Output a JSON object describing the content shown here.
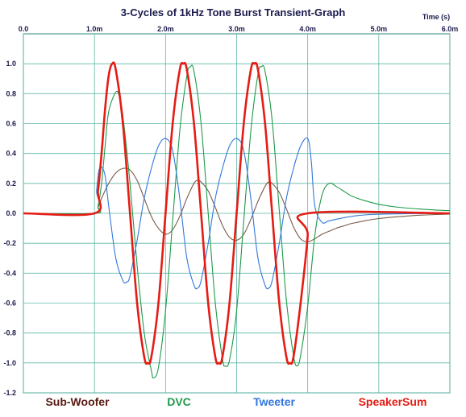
{
  "chart_data": {
    "type": "line",
    "title": "3-Cycles of 1kHz Tone Burst Transient-Graph",
    "x_unit_label": "Time  (s)",
    "xlim": [
      0,
      0.006
    ],
    "ylim": [
      -1.2,
      1.2
    ],
    "x_ticks": [
      {
        "value": 0.0,
        "label": "0.0"
      },
      {
        "value": 0.001,
        "label": "1.0m"
      },
      {
        "value": 0.002,
        "label": "2.0m"
      },
      {
        "value": 0.003,
        "label": "3.0m"
      },
      {
        "value": 0.004,
        "label": "4.0m"
      },
      {
        "value": 0.005,
        "label": "5.0m"
      },
      {
        "value": 0.006,
        "label": "6.0m"
      }
    ],
    "y_ticks": [
      {
        "value": 1.0,
        "label": "1.0"
      },
      {
        "value": 0.8,
        "label": "0.8"
      },
      {
        "value": 0.6,
        "label": "0.6"
      },
      {
        "value": 0.4,
        "label": "0.4"
      },
      {
        "value": 0.2,
        "label": "0.2"
      },
      {
        "value": 0.0,
        "label": "0.0"
      },
      {
        "value": -0.2,
        "label": "-0.2"
      },
      {
        "value": -0.4,
        "label": "-0.4"
      },
      {
        "value": -0.6,
        "label": "-0.6"
      },
      {
        "value": -0.8,
        "label": "-0.8"
      },
      {
        "value": -1.0,
        "label": "-1.0"
      },
      {
        "value": -1.2,
        "label": "-1.2"
      }
    ],
    "grid": true,
    "legend_position": "bottom",
    "series": [
      {
        "name": "Sub-Woofer",
        "color": "#7a5a4a",
        "points": [
          [
            0,
            0
          ],
          [
            0.001,
            0
          ],
          [
            0.00105,
            0.04
          ],
          [
            0.0011,
            0.1
          ],
          [
            0.0012,
            0.2
          ],
          [
            0.0013,
            0.27
          ],
          [
            0.0014,
            0.3
          ],
          [
            0.0015,
            0.29
          ],
          [
            0.0016,
            0.22
          ],
          [
            0.0017,
            0.1
          ],
          [
            0.0018,
            -0.02
          ],
          [
            0.0019,
            -0.1
          ],
          [
            0.002,
            -0.14
          ],
          [
            0.0021,
            -0.11
          ],
          [
            0.0022,
            -0.02
          ],
          [
            0.0023,
            0.1
          ],
          [
            0.0024,
            0.2
          ],
          [
            0.00245,
            0.22
          ],
          [
            0.0025,
            0.21
          ],
          [
            0.0026,
            0.15
          ],
          [
            0.0027,
            0.04
          ],
          [
            0.0028,
            -0.08
          ],
          [
            0.0029,
            -0.16
          ],
          [
            0.003,
            -0.18
          ],
          [
            0.0031,
            -0.14
          ],
          [
            0.0032,
            -0.04
          ],
          [
            0.0033,
            0.08
          ],
          [
            0.0034,
            0.18
          ],
          [
            0.00345,
            0.21
          ],
          [
            0.0035,
            0.2
          ],
          [
            0.0036,
            0.14
          ],
          [
            0.0037,
            0.03
          ],
          [
            0.0038,
            -0.09
          ],
          [
            0.0039,
            -0.17
          ],
          [
            0.004,
            -0.19
          ],
          [
            0.0041,
            -0.17
          ],
          [
            0.0042,
            -0.14
          ],
          [
            0.0043,
            -0.12
          ],
          [
            0.0044,
            -0.1
          ],
          [
            0.0045,
            -0.085
          ],
          [
            0.0046,
            -0.07
          ],
          [
            0.0047,
            -0.06
          ],
          [
            0.0048,
            -0.05
          ],
          [
            0.005,
            -0.035
          ],
          [
            0.0052,
            -0.025
          ],
          [
            0.0054,
            -0.018
          ],
          [
            0.0056,
            -0.012
          ],
          [
            0.0058,
            -0.008
          ],
          [
            0.006,
            -0.005
          ]
        ]
      },
      {
        "name": "DVC",
        "color": "#1e9a4a",
        "points": [
          [
            0,
            0
          ],
          [
            0.001,
            0
          ],
          [
            0.00105,
            0.05
          ],
          [
            0.0011,
            0.2
          ],
          [
            0.00115,
            0.45
          ],
          [
            0.0012,
            0.68
          ],
          [
            0.0013,
            0.81
          ],
          [
            0.00135,
            0.78
          ],
          [
            0.0014,
            0.65
          ],
          [
            0.0015,
            0.2
          ],
          [
            0.0016,
            -0.35
          ],
          [
            0.0017,
            -0.8
          ],
          [
            0.0018,
            -1.05
          ],
          [
            0.00183,
            -1.1
          ],
          [
            0.0019,
            -1.03
          ],
          [
            0.002,
            -0.65
          ],
          [
            0.0021,
            -0.05
          ],
          [
            0.0022,
            0.55
          ],
          [
            0.0023,
            0.92
          ],
          [
            0.00235,
            0.98
          ],
          [
            0.0024,
            0.95
          ],
          [
            0.0025,
            0.6
          ],
          [
            0.0026,
            0.0
          ],
          [
            0.0027,
            -0.6
          ],
          [
            0.0028,
            -0.97
          ],
          [
            0.00284,
            -1.02
          ],
          [
            0.0029,
            -0.98
          ],
          [
            0.003,
            -0.65
          ],
          [
            0.0031,
            -0.05
          ],
          [
            0.0032,
            0.55
          ],
          [
            0.0033,
            0.93
          ],
          [
            0.00335,
            0.98
          ],
          [
            0.0034,
            0.95
          ],
          [
            0.0035,
            0.62
          ],
          [
            0.0036,
            0.02
          ],
          [
            0.0037,
            -0.58
          ],
          [
            0.0038,
            -0.95
          ],
          [
            0.00385,
            -1.02
          ],
          [
            0.0039,
            -0.95
          ],
          [
            0.004,
            -0.62
          ],
          [
            0.0041,
            -0.15
          ],
          [
            0.0042,
            0.12
          ],
          [
            0.0043,
            0.2
          ],
          [
            0.0044,
            0.18
          ],
          [
            0.0045,
            0.15
          ],
          [
            0.0046,
            0.12
          ],
          [
            0.0047,
            0.1
          ],
          [
            0.0048,
            0.085
          ],
          [
            0.005,
            0.06
          ],
          [
            0.0052,
            0.045
          ],
          [
            0.0054,
            0.035
          ],
          [
            0.0056,
            0.028
          ],
          [
            0.0058,
            0.022
          ],
          [
            0.006,
            0.018
          ]
        ]
      },
      {
        "name": "Tweeter",
        "color": "#3377dd",
        "points": [
          [
            0,
            0
          ],
          [
            0.001,
            0
          ],
          [
            0.00103,
            0.15
          ],
          [
            0.00106,
            0.28
          ],
          [
            0.0011,
            0.31
          ],
          [
            0.00115,
            0.25
          ],
          [
            0.0012,
            0.05
          ],
          [
            0.0013,
            -0.3
          ],
          [
            0.0014,
            -0.45
          ],
          [
            0.00145,
            -0.46
          ],
          [
            0.0015,
            -0.42
          ],
          [
            0.0016,
            -0.18
          ],
          [
            0.0017,
            0.1
          ],
          [
            0.0018,
            0.3
          ],
          [
            0.0019,
            0.45
          ],
          [
            0.002,
            0.5
          ],
          [
            0.0021,
            0.42
          ],
          [
            0.0022,
            0.1
          ],
          [
            0.0023,
            -0.3
          ],
          [
            0.0024,
            -0.48
          ],
          [
            0.00245,
            -0.5
          ],
          [
            0.0025,
            -0.45
          ],
          [
            0.0026,
            -0.2
          ],
          [
            0.0027,
            0.1
          ],
          [
            0.0028,
            0.3
          ],
          [
            0.0029,
            0.45
          ],
          [
            0.003,
            0.5
          ],
          [
            0.0031,
            0.42
          ],
          [
            0.0032,
            0.1
          ],
          [
            0.0033,
            -0.3
          ],
          [
            0.0034,
            -0.48
          ],
          [
            0.00345,
            -0.5
          ],
          [
            0.0035,
            -0.45
          ],
          [
            0.0036,
            -0.2
          ],
          [
            0.0037,
            0.1
          ],
          [
            0.0038,
            0.3
          ],
          [
            0.0039,
            0.45
          ],
          [
            0.004,
            0.5
          ],
          [
            0.00405,
            0.35
          ],
          [
            0.0041,
            0.05
          ],
          [
            0.0042,
            -0.06
          ],
          [
            0.0043,
            -0.05
          ],
          [
            0.0045,
            -0.03
          ],
          [
            0.0047,
            -0.015
          ],
          [
            0.005,
            -0.006
          ],
          [
            0.0055,
            -0.002
          ],
          [
            0.006,
            0
          ]
        ]
      },
      {
        "name": "SpeakerSum",
        "color": "#e51c14",
        "points": [
          [
            0,
            0
          ],
          [
            0.001,
            0
          ],
          [
            0.00105,
            0.15
          ],
          [
            0.0011,
            0.4
          ],
          [
            0.00115,
            0.7
          ],
          [
            0.0012,
            0.92
          ],
          [
            0.00125,
            1.0
          ],
          [
            0.0013,
            0.96
          ],
          [
            0.0014,
            0.6
          ],
          [
            0.0015,
            0.0
          ],
          [
            0.0016,
            -0.6
          ],
          [
            0.0017,
            -0.96
          ],
          [
            0.00175,
            -1.0
          ],
          [
            0.0018,
            -0.96
          ],
          [
            0.0019,
            -0.6
          ],
          [
            0.002,
            0.0
          ],
          [
            0.0021,
            0.6
          ],
          [
            0.0022,
            0.96
          ],
          [
            0.00225,
            1.0
          ],
          [
            0.0023,
            0.96
          ],
          [
            0.0024,
            0.6
          ],
          [
            0.0025,
            0.0
          ],
          [
            0.0026,
            -0.6
          ],
          [
            0.0027,
            -0.96
          ],
          [
            0.00275,
            -1.0
          ],
          [
            0.0028,
            -0.96
          ],
          [
            0.0029,
            -0.6
          ],
          [
            0.003,
            0.0
          ],
          [
            0.0031,
            0.6
          ],
          [
            0.0032,
            0.96
          ],
          [
            0.00325,
            1.0
          ],
          [
            0.0033,
            0.96
          ],
          [
            0.0034,
            0.6
          ],
          [
            0.0035,
            0.0
          ],
          [
            0.0036,
            -0.6
          ],
          [
            0.0037,
            -0.96
          ],
          [
            0.00375,
            -1.0
          ],
          [
            0.0038,
            -0.96
          ],
          [
            0.0039,
            -0.6
          ],
          [
            0.004,
            -0.15
          ],
          [
            0.004,
            0
          ],
          [
            0.006,
            0
          ]
        ]
      }
    ]
  }
}
